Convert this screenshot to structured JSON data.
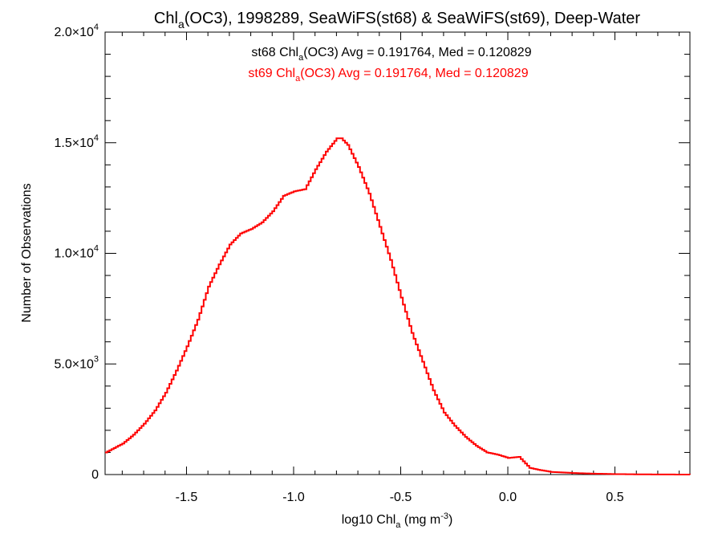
{
  "chart_data": {
    "type": "line",
    "title": {
      "prefix": "Chl",
      "sub": "a",
      "suffix": "(OC3), 1998289, SeaWiFS(st68) & SeaWiFS(st69), Deep-Water"
    },
    "xlabel": {
      "prefix": "log10 Chl",
      "sub": "a",
      "mid": " (mg m",
      "sup": "-3",
      "suffix": ")"
    },
    "ylabel": "Number of Observations",
    "xlim": [
      -1.88,
      0.85
    ],
    "ylim": [
      0,
      20000
    ],
    "grid": false,
    "xticks": [
      {
        "value": -1.5,
        "label": "-1.5"
      },
      {
        "value": -1.0,
        "label": "-1.0"
      },
      {
        "value": -0.5,
        "label": "-0.5"
      },
      {
        "value": 0.0,
        "label": "0.0"
      },
      {
        "value": 0.5,
        "label": "0.5"
      }
    ],
    "yticks": [
      {
        "value": 0,
        "mant": "0",
        "exp": ""
      },
      {
        "value": 5000,
        "mant": "5.0×10",
        "exp": "3"
      },
      {
        "value": 10000,
        "mant": "1.0×10",
        "exp": "4"
      },
      {
        "value": 15000,
        "mant": "1.5×10",
        "exp": "4"
      },
      {
        "value": 20000,
        "mant": "2.0×10",
        "exp": "4"
      }
    ],
    "annotations": [
      {
        "station": "st68 ",
        "var": "Chl",
        "sub": "a",
        "rest": "(OC3) Avg = 0.191764, Med = 0.120829",
        "color": "#000000"
      },
      {
        "station": "st69 ",
        "var": "Chl",
        "sub": "a",
        "rest": "(OC3) Avg = 0.191764, Med = 0.120829",
        "color": "#ff0000"
      }
    ],
    "series": [
      {
        "color": "#ff0000",
        "x": [
          -1.88,
          -1.8,
          -1.75,
          -1.7,
          -1.65,
          -1.6,
          -1.55,
          -1.5,
          -1.45,
          -1.4,
          -1.35,
          -1.3,
          -1.25,
          -1.2,
          -1.15,
          -1.1,
          -1.05,
          -1.0,
          -0.95,
          -0.9,
          -0.85,
          -0.8,
          -0.78,
          -0.75,
          -0.7,
          -0.65,
          -0.6,
          -0.55,
          -0.5,
          -0.45,
          -0.4,
          -0.35,
          -0.3,
          -0.25,
          -0.2,
          -0.15,
          -0.1,
          -0.05,
          0.0,
          0.05,
          0.1,
          0.15,
          0.2,
          0.3,
          0.4,
          0.5,
          0.6,
          0.7,
          0.85
        ],
        "y": [
          1000,
          1400,
          1800,
          2300,
          2900,
          3700,
          4700,
          5800,
          7000,
          8500,
          9500,
          10400,
          10900,
          11100,
          11400,
          11900,
          12600,
          12800,
          12900,
          13800,
          14600,
          15200,
          15200,
          14900,
          13900,
          12700,
          11200,
          9700,
          8000,
          6400,
          5100,
          3800,
          2800,
          2200,
          1700,
          1300,
          1000,
          900,
          750,
          800,
          300,
          200,
          120,
          70,
          40,
          20,
          10,
          5,
          0
        ]
      }
    ]
  }
}
